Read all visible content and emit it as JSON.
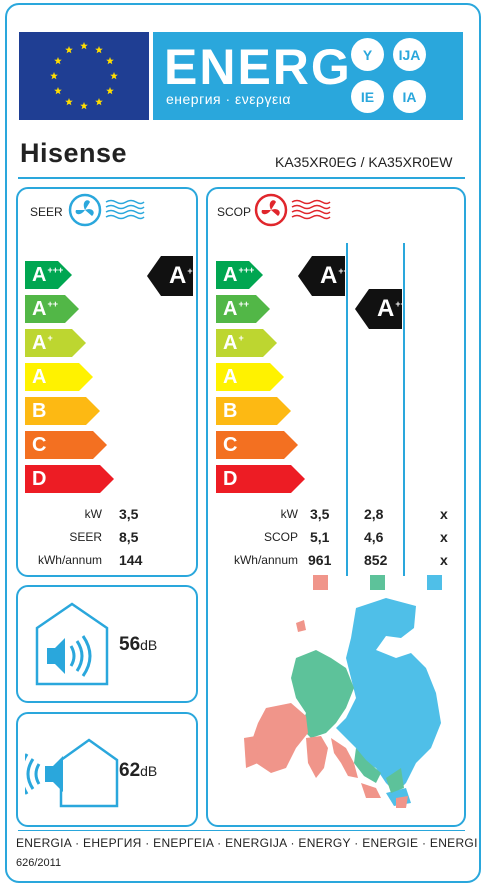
{
  "header": {
    "energy_title": "ENERG",
    "energy_subtitle": "енергия · ενεργεια",
    "lang_badges": [
      "Y",
      "IJA",
      "IE",
      "IA"
    ]
  },
  "brand": {
    "name": "Hisense",
    "model": "KA35XR0EG / KA35XR0EW"
  },
  "scales": {
    "classes": [
      "A+++",
      "A++",
      "A+",
      "A",
      "B",
      "C",
      "D"
    ],
    "colors": [
      "#00a651",
      "#52b747",
      "#bdd630",
      "#fff200",
      "#fdb913",
      "#f37021",
      "#ed1c24"
    ]
  },
  "seer_panel": {
    "title": "SEER",
    "rating": "A+++",
    "rows": [
      {
        "label": "kW",
        "value": "3,5"
      },
      {
        "label": "SEER",
        "value": "8,5"
      },
      {
        "label": "kWh/annum",
        "value": "144"
      }
    ]
  },
  "scop_panel": {
    "title": "SCOP",
    "ratings": [
      "A+++",
      "A++"
    ],
    "rows": [
      {
        "label": "kW",
        "values": [
          "3,5",
          "2,8",
          "x"
        ]
      },
      {
        "label": "SCOP",
        "values": [
          "5,1",
          "4,6",
          "x"
        ]
      },
      {
        "label": "kWh/annum",
        "values": [
          "961",
          "852",
          "x"
        ]
      }
    ],
    "zone_colors": [
      "#f0958a",
      "#5dc29a",
      "#4fbfe8"
    ]
  },
  "noise_indoor": {
    "value": "56",
    "unit": "dB"
  },
  "noise_outdoor": {
    "value": "62",
    "unit": "dB"
  },
  "footer": {
    "languages": "ENERGIA · ЕНЕРГИЯ · ΕΝΕΡΓΕΙΑ · ENERGIJA · ENERGY · ENERGIE · ENERGI",
    "regulation": "626/2011"
  }
}
